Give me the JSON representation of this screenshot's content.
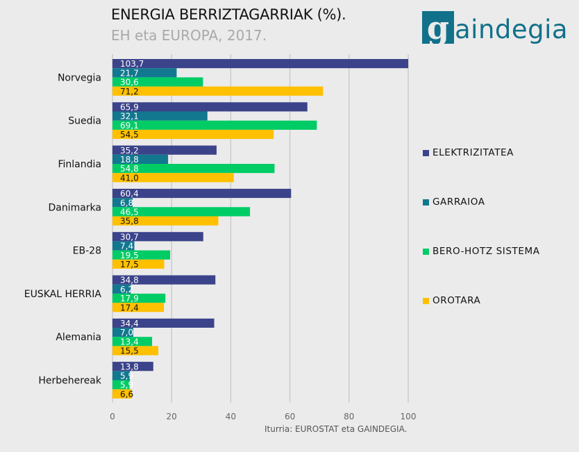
{
  "header": {
    "title": "ENERGIA BERRIZTAGARRIAK (%).",
    "subtitle": "EH eta EUROPA, 2017."
  },
  "logo": {
    "icon_letter": "g",
    "text": "aindegia",
    "color": "#12718a"
  },
  "source": "Iturria: EUROSTAT eta GAINDEGIA.",
  "chart_data": {
    "type": "bar",
    "orientation": "horizontal",
    "title": "ENERGIA BERRIZTAGARRIAK (%).",
    "subtitle": "EH eta EUROPA, 2017.",
    "xlabel": "",
    "ylabel": "",
    "xlim": [
      0,
      100
    ],
    "xticks": [
      0,
      20,
      40,
      60,
      80,
      100
    ],
    "xtick_labels": [
      "0",
      "20",
      "40",
      "60",
      "80",
      "100"
    ],
    "grid": true,
    "legend_position": "right",
    "categories": [
      "Norvegia",
      "Suedia",
      "Finlandia",
      "Danimarka",
      "EB-28",
      "EUSKAL HERRIA",
      "Alemania",
      "Herbehereak"
    ],
    "series": [
      {
        "name": "ELEKTRIZITATEA",
        "color": "#3b438a",
        "label_color": "#ffffff",
        "values": [
          103.7,
          65.9,
          35.2,
          60.4,
          30.7,
          34.8,
          34.4,
          13.8
        ],
        "labels": [
          "103,7",
          "65,9",
          "35,2",
          "60,4",
          "30,7",
          "34,8",
          "34,4",
          "13,8"
        ]
      },
      {
        "name": "GARRAIOA",
        "color": "#12788f",
        "label_color": "#ffffff",
        "values": [
          21.7,
          32.1,
          18.8,
          6.8,
          7.4,
          6.2,
          7.0,
          5.9
        ],
        "labels": [
          "21,7",
          "32,1",
          "18,8",
          "6,8",
          "7,4",
          "6,2",
          "7,0",
          "5,9"
        ]
      },
      {
        "name": "BERO-HOTZ SISTEMA",
        "color": "#00cc66",
        "label_color": "#ffffff",
        "values": [
          30.6,
          69.1,
          54.8,
          46.5,
          19.5,
          17.9,
          13.4,
          5.9
        ],
        "labels": [
          "30,6",
          "69,1",
          "54,8",
          "46,5",
          "19,5",
          "17,9",
          "13,4",
          "5,9"
        ]
      },
      {
        "name": "OROTARA",
        "color": "#ffc000",
        "label_color": "#111111",
        "values": [
          71.2,
          54.5,
          41.0,
          35.8,
          17.5,
          17.4,
          15.5,
          6.6
        ],
        "labels": [
          "71,2",
          "54,5",
          "41,0",
          "35,8",
          "17,5",
          "17,4",
          "15,5",
          "6,6"
        ]
      }
    ],
    "source": "Iturria: EUROSTAT eta GAINDEGIA."
  }
}
